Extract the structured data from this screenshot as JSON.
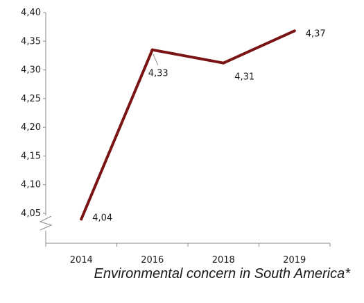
{
  "chart_data": {
    "type": "line",
    "title": "",
    "xlabel": "",
    "ylabel": "",
    "categories": [
      "2014",
      "2016",
      "2018",
      "2019"
    ],
    "series": [
      {
        "values": [
          4.04,
          4.335,
          4.312,
          4.368
        ],
        "labels": [
          "4,04",
          "4,33",
          "4,31",
          "4,37"
        ],
        "color": "#7a1414"
      }
    ],
    "yticks": [
      {
        "value": 4.05,
        "label": "4,05"
      },
      {
        "value": 4.1,
        "label": "4,10"
      },
      {
        "value": 4.15,
        "label": "4,15"
      },
      {
        "value": 4.2,
        "label": "4,20"
      },
      {
        "value": 4.25,
        "label": "4,25"
      },
      {
        "value": 4.3,
        "label": "4,30"
      },
      {
        "value": 4.35,
        "label": "4,35"
      },
      {
        "value": 4.4,
        "label": "4,40"
      }
    ],
    "ylim": [
      4.0,
      4.4
    ],
    "axis_break": true,
    "grid": false,
    "legend": "none"
  },
  "caption": "Environmental concern in South America*"
}
